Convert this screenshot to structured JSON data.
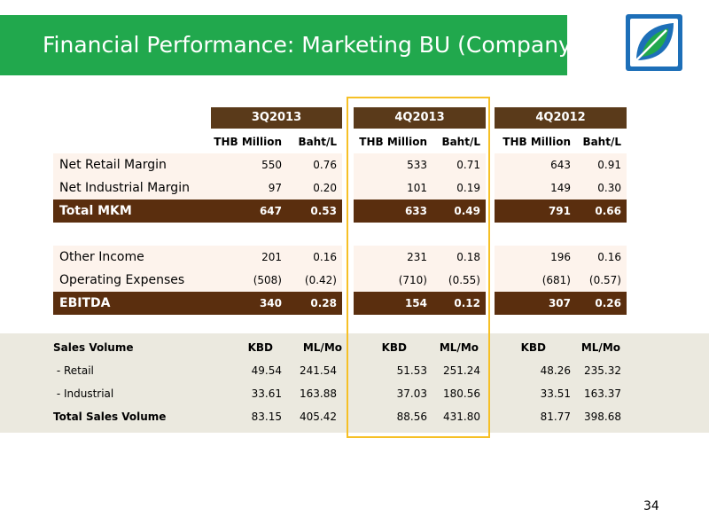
{
  "title": "Financial Performance: Marketing BU (Company)",
  "page_number": "34",
  "colors": {
    "title_bar": "#21a84d",
    "header": "#5a3a1a",
    "total_row": "#5a2e0e",
    "row_bg": "#fdf3ec",
    "highlight": "#f6c026",
    "band": "#ebe9df"
  },
  "logo_icon": "leaf-logo-icon",
  "periods": [
    "3Q2013",
    "4Q2013",
    "4Q2012"
  ],
  "sub_headers": [
    "THB Million",
    "Baht/L"
  ],
  "rows": [
    {
      "label": "Net Retail Margin",
      "values": [
        "550",
        "0.76",
        "533",
        "0.71",
        "643",
        "0.91"
      ],
      "total": false
    },
    {
      "label": "Net Industrial Margin",
      "values": [
        "97",
        "0.20",
        "101",
        "0.19",
        "149",
        "0.30"
      ],
      "total": false
    },
    {
      "label": "Total MKM",
      "values": [
        "647",
        "0.53",
        "633",
        "0.49",
        "791",
        "0.66"
      ],
      "total": true
    },
    {
      "label": "Other Income",
      "values": [
        "201",
        "0.16",
        "231",
        "0.18",
        "196",
        "0.16"
      ],
      "total": false
    },
    {
      "label": "Operating Expenses",
      "values": [
        "(508)",
        "(0.42)",
        "(710)",
        "(0.55)",
        "(681)",
        "(0.57)"
      ],
      "total": false
    },
    {
      "label": "EBITDA",
      "values": [
        "340",
        "0.28",
        "154",
        "0.12",
        "307",
        "0.26"
      ],
      "total": true
    }
  ],
  "sales_volume": {
    "label": "Sales Volume",
    "units": [
      "KBD",
      "ML/Mo"
    ],
    "rows": [
      {
        "label": " - Retail",
        "values": [
          "49.54",
          "241.54",
          "51.53",
          "251.24",
          "48.26",
          "235.32"
        ],
        "bold": false
      },
      {
        "label": " - Industrial",
        "values": [
          "33.61",
          "163.88",
          "37.03",
          "180.56",
          "33.51",
          "163.37"
        ],
        "bold": false
      },
      {
        "label": "Total Sales Volume",
        "values": [
          "83.15",
          "405.42",
          "88.56",
          "431.80",
          "81.77",
          "398.68"
        ],
        "bold": true
      }
    ]
  }
}
